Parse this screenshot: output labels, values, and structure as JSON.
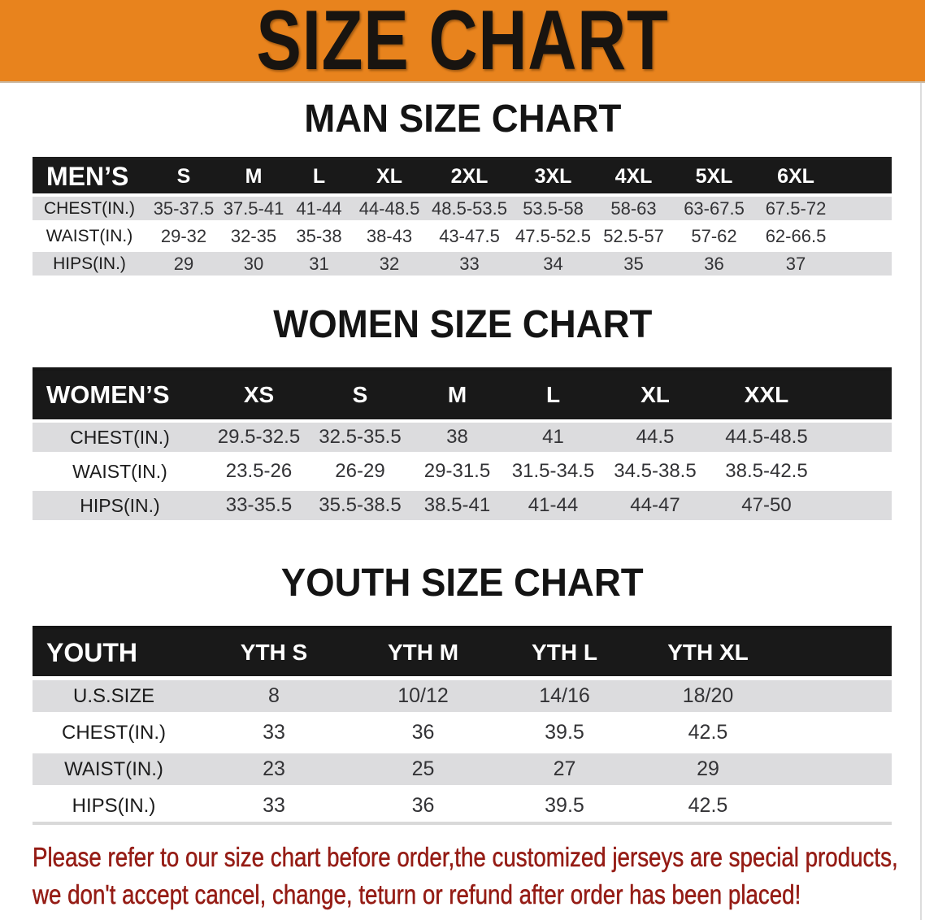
{
  "banner": {
    "title": "SIZE CHART",
    "bg_color": "#e8831d"
  },
  "sections": [
    {
      "heading": "MAN SIZE CHART",
      "table": {
        "header": [
          "MEN’S",
          "S",
          "M",
          "L",
          "XL",
          "2XL",
          "3XL",
          "4XL",
          "5XL",
          "6XL"
        ],
        "rows": [
          [
            "CHEST(IN.)",
            "35-37.5",
            "37.5-41",
            "41-44",
            "44-48.5",
            "48.5-53.5",
            "53.5-58",
            "58-63",
            "63-67.5",
            "67.5-72"
          ],
          [
            "WAIST(IN.)",
            "29-32",
            "32-35",
            "35-38",
            "38-43",
            "43-47.5",
            "47.5-52.5",
            "52.5-57",
            "57-62",
            "62-66.5"
          ],
          [
            "HIPS(IN.)",
            "29",
            "30",
            "31",
            "32",
            "33",
            "34",
            "35",
            "36",
            "37"
          ]
        ]
      }
    },
    {
      "heading": "WOMEN SIZE CHART",
      "table": {
        "header": [
          "WOMEN’S",
          "XS",
          "S",
          "M",
          "L",
          "XL",
          "XXL"
        ],
        "rows": [
          [
            "CHEST(IN.)",
            "29.5-32.5",
            "32.5-35.5",
            "38",
            "41",
            "44.5",
            "44.5-48.5"
          ],
          [
            "WAIST(IN.)",
            "23.5-26",
            "26-29",
            "29-31.5",
            "31.5-34.5",
            "34.5-38.5",
            "38.5-42.5"
          ],
          [
            "HIPS(IN.)",
            "33-35.5",
            "35.5-38.5",
            "38.5-41",
            "41-44",
            "44-47",
            "47-50"
          ]
        ]
      }
    },
    {
      "heading": "YOUTH SIZE CHART",
      "table": {
        "header": [
          "YOUTH",
          "YTH S",
          "YTH M",
          "YTH L",
          "YTH XL"
        ],
        "rows": [
          [
            "U.S.SIZE",
            "8",
            "10/12",
            "14/16",
            "18/20"
          ],
          [
            "CHEST(IN.)",
            "33",
            "36",
            "39.5",
            "42.5"
          ],
          [
            "WAIST(IN.)",
            "23",
            "25",
            "27",
            "29"
          ],
          [
            "HIPS(IN.)",
            "33",
            "36",
            "39.5",
            "42.5"
          ]
        ]
      }
    }
  ],
  "disclaimer": {
    "line1": "Please refer to our size chart before order,the customized jerseys are special products,",
    "line2": "we don't accept cancel, change, teturn or refund after order has been placed!",
    "color": "#951c15"
  }
}
